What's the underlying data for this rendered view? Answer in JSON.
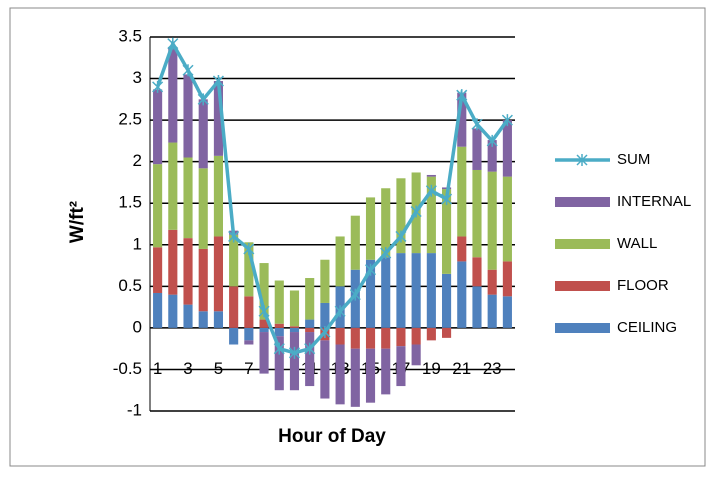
{
  "chart_data": {
    "type": "stacked-bar-line",
    "y_label": "W/ft²",
    "x_label": "Hour of Day",
    "categories": [
      1,
      null,
      3,
      null,
      5,
      null,
      7,
      null,
      9,
      null,
      11,
      null,
      13,
      null,
      15,
      null,
      17,
      null,
      19,
      null,
      21,
      null,
      23,
      null
    ],
    "series": [
      {
        "name": "CEILING",
        "type": "bar",
        "color": "#4f81bd",
        "values": [
          0.42,
          0.4,
          0.28,
          0.2,
          0.2,
          -0.2,
          -0.15,
          -0.05,
          -0.1,
          -0.05,
          0.1,
          0.3,
          0.5,
          0.7,
          0.82,
          0.85,
          0.9,
          0.9,
          0.9,
          0.65,
          0.8,
          0.5,
          0.4,
          0.38
        ]
      },
      {
        "name": "FLOOR",
        "type": "bar",
        "color": "#c0504d",
        "values": [
          0.55,
          0.78,
          0.8,
          0.75,
          0.9,
          0.5,
          0.38,
          0.1,
          0.05,
          0.02,
          -0.05,
          -0.15,
          -0.2,
          -0.25,
          -0.25,
          -0.25,
          -0.22,
          -0.2,
          -0.15,
          -0.12,
          0.3,
          0.35,
          0.3,
          0.42
        ]
      },
      {
        "name": "WALL",
        "type": "bar",
        "color": "#9bbb59",
        "values": [
          1.0,
          1.05,
          0.97,
          0.97,
          0.97,
          0.62,
          0.65,
          0.68,
          0.52,
          0.43,
          0.5,
          0.52,
          0.6,
          0.65,
          0.75,
          0.83,
          0.9,
          0.97,
          0.92,
          1.02,
          1.08,
          1.05,
          1.18,
          1.02
        ]
      },
      {
        "name": "INTERNAL",
        "type": "bar",
        "color": "#8064a2",
        "values": [
          0.9,
          1.15,
          1.0,
          0.83,
          0.9,
          0.05,
          -0.05,
          -0.5,
          -0.65,
          -0.7,
          -0.65,
          -0.7,
          -0.72,
          -0.7,
          -0.65,
          -0.55,
          -0.48,
          -0.25,
          0.02,
          0.02,
          0.65,
          0.5,
          0.38,
          0.68
        ]
      },
      {
        "name": "SUM",
        "type": "line",
        "color": "#4bacc6",
        "values": [
          2.9,
          3.42,
          3.1,
          2.75,
          2.97,
          1.1,
          0.95,
          0.2,
          -0.25,
          -0.3,
          -0.25,
          -0.05,
          0.2,
          0.4,
          0.7,
          0.9,
          1.1,
          1.4,
          1.65,
          1.55,
          2.8,
          2.45,
          2.25,
          2.5
        ]
      }
    ],
    "ylim": [
      -1,
      3.5
    ],
    "yticks": [
      -1,
      -0.5,
      0,
      0.5,
      1,
      1.5,
      2,
      2.5,
      3,
      3.5
    ],
    "grid": true,
    "legend": "right"
  }
}
